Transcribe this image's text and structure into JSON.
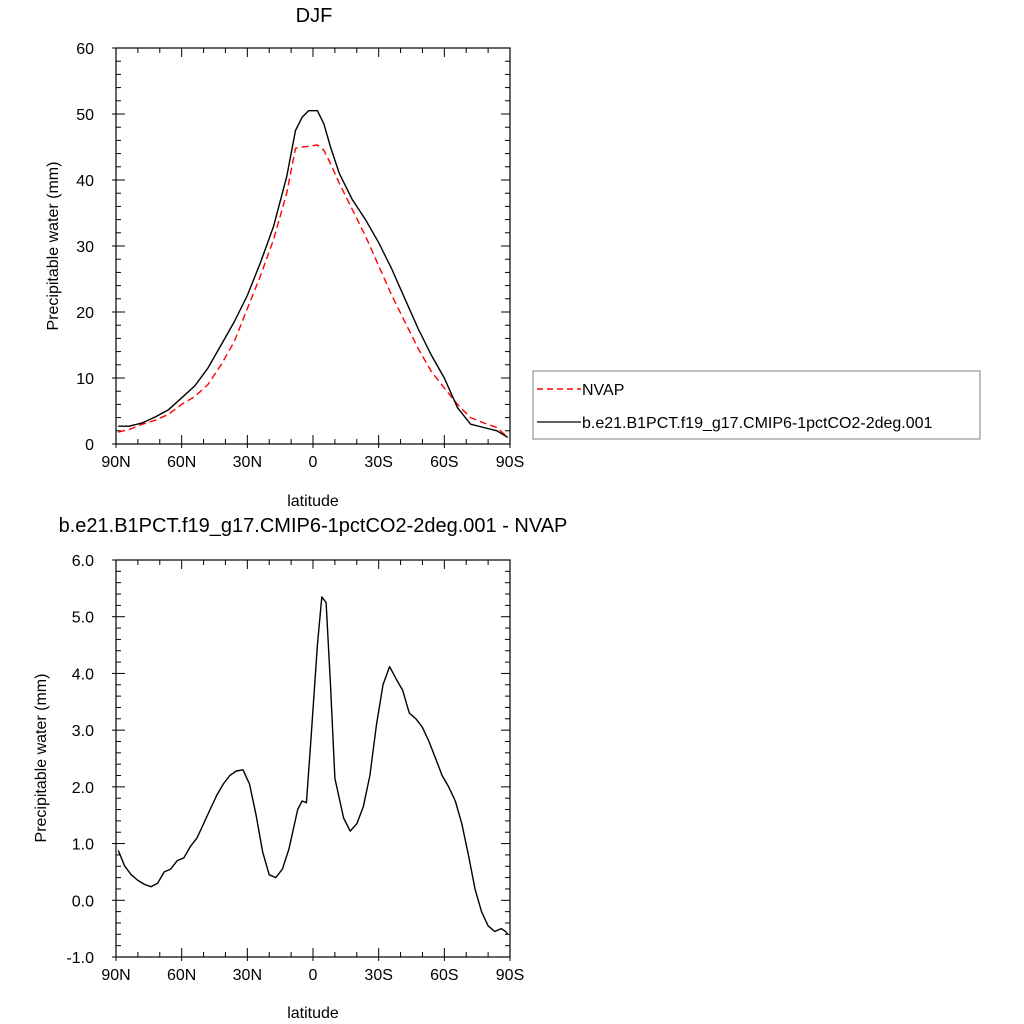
{
  "chart_data": [
    {
      "type": "line",
      "title": "DJF",
      "xlabel": "latitude",
      "ylabel": "Precipitable water (mm)",
      "xlim": [
        90,
        -90
      ],
      "ylim": [
        0,
        60
      ],
      "x_ticks": [
        90,
        60,
        30,
        0,
        -30,
        -60,
        -90
      ],
      "x_tick_labels": [
        "90N",
        "60N",
        "30N",
        "0",
        "30S",
        "60S",
        "90S"
      ],
      "y_ticks": [
        0,
        10,
        20,
        30,
        40,
        50,
        60
      ],
      "y_tick_labels": [
        "0",
        "10",
        "20",
        "30",
        "40",
        "50",
        "60"
      ],
      "grid": false,
      "legend_position": "right",
      "series": [
        {
          "name": "NVAP",
          "color": "#ff0000",
          "dash": "dashed",
          "x": [
            89,
            84,
            78,
            72,
            66,
            60,
            54,
            48,
            42,
            36,
            30,
            24,
            18,
            12,
            8,
            5,
            2,
            -2,
            -5,
            -8,
            -12,
            -18,
            -24,
            -30,
            -36,
            -42,
            -48,
            -54,
            -60,
            -66,
            -72,
            -78,
            -84,
            -89
          ],
          "y": [
            1.8,
            2.2,
            3.0,
            3.6,
            4.5,
            6.0,
            7.2,
            9.0,
            12.0,
            15.5,
            20.5,
            25.5,
            31.0,
            38.0,
            44.8,
            45.0,
            45.1,
            45.3,
            44.5,
            42.5,
            39.5,
            35.5,
            31.5,
            27.0,
            22.5,
            18.5,
            14.5,
            11.0,
            8.5,
            6.0,
            4.0,
            3.2,
            2.5,
            1.0
          ]
        },
        {
          "name": "b.e21.B1PCT.f19_g17.CMIP6-1pctCO2-2deg.001",
          "color": "#000000",
          "dash": "solid",
          "x": [
            89,
            84,
            78,
            72,
            66,
            60,
            54,
            48,
            42,
            36,
            30,
            24,
            18,
            12,
            8,
            5,
            2,
            -2,
            -5,
            -8,
            -12,
            -18,
            -24,
            -30,
            -36,
            -42,
            -48,
            -54,
            -60,
            -66,
            -72,
            -78,
            -84,
            -89
          ],
          "y": [
            2.7,
            2.7,
            3.2,
            4.1,
            5.2,
            7.0,
            8.8,
            11.5,
            15.0,
            18.5,
            22.5,
            27.5,
            33.0,
            40.5,
            47.5,
            49.5,
            50.5,
            50.5,
            48.5,
            45.0,
            41.0,
            37.0,
            34.0,
            30.5,
            26.5,
            22.0,
            17.5,
            13.5,
            10.0,
            5.5,
            3.0,
            2.5,
            2.0,
            1.0
          ]
        }
      ]
    },
    {
      "type": "line",
      "title": "b.e21.B1PCT.f19_g17.CMIP6-1pctCO2-2deg.001 - NVAP",
      "xlabel": "latitude",
      "ylabel": "Precipitable water (mm)",
      "xlim": [
        90,
        -90
      ],
      "ylim": [
        -1.0,
        6.0
      ],
      "x_ticks": [
        90,
        60,
        30,
        0,
        -30,
        -60,
        -90
      ],
      "x_tick_labels": [
        "90N",
        "60N",
        "30N",
        "0",
        "30S",
        "60S",
        "90S"
      ],
      "y_ticks": [
        -1,
        0,
        1,
        2,
        3,
        4,
        5,
        6
      ],
      "y_tick_labels": [
        "-1.0",
        "0.0",
        "1.0",
        "2.0",
        "3.0",
        "4.0",
        "5.0",
        "6.0"
      ],
      "grid": false,
      "series": [
        {
          "color": "#000000",
          "dash": "solid",
          "x": [
            89,
            86,
            83,
            80,
            77,
            74,
            71,
            68,
            65,
            62,
            59,
            56,
            53,
            50,
            47,
            44,
            41,
            38,
            35,
            32,
            29,
            26,
            23,
            20,
            17,
            14,
            11,
            9,
            7,
            5,
            3,
            1,
            -2,
            -4,
            -6,
            -8,
            -10,
            -14,
            -17,
            -20,
            -23,
            -26,
            -29,
            -32,
            -35,
            -38,
            -41,
            -44,
            -47,
            -50,
            -53,
            -56,
            -59,
            -62,
            -65,
            -68,
            -71,
            -74,
            -77,
            -80,
            -83,
            -86,
            -88,
            -89
          ],
          "y": [
            0.88,
            0.6,
            0.45,
            0.35,
            0.28,
            0.24,
            0.3,
            0.5,
            0.55,
            0.7,
            0.75,
            0.95,
            1.1,
            1.35,
            1.6,
            1.85,
            2.05,
            2.2,
            2.28,
            2.3,
            2.05,
            1.5,
            0.85,
            0.45,
            0.4,
            0.55,
            0.9,
            1.25,
            1.6,
            1.75,
            1.72,
            2.8,
            4.5,
            5.35,
            5.25,
            3.8,
            2.15,
            1.45,
            1.22,
            1.35,
            1.65,
            2.2,
            3.1,
            3.8,
            4.12,
            3.9,
            3.7,
            3.3,
            3.2,
            3.05,
            2.8,
            2.5,
            2.2,
            2.0,
            1.75,
            1.35,
            0.8,
            0.2,
            -0.2,
            -0.45,
            -0.55,
            -0.5,
            -0.55,
            -0.6
          ]
        }
      ]
    }
  ]
}
